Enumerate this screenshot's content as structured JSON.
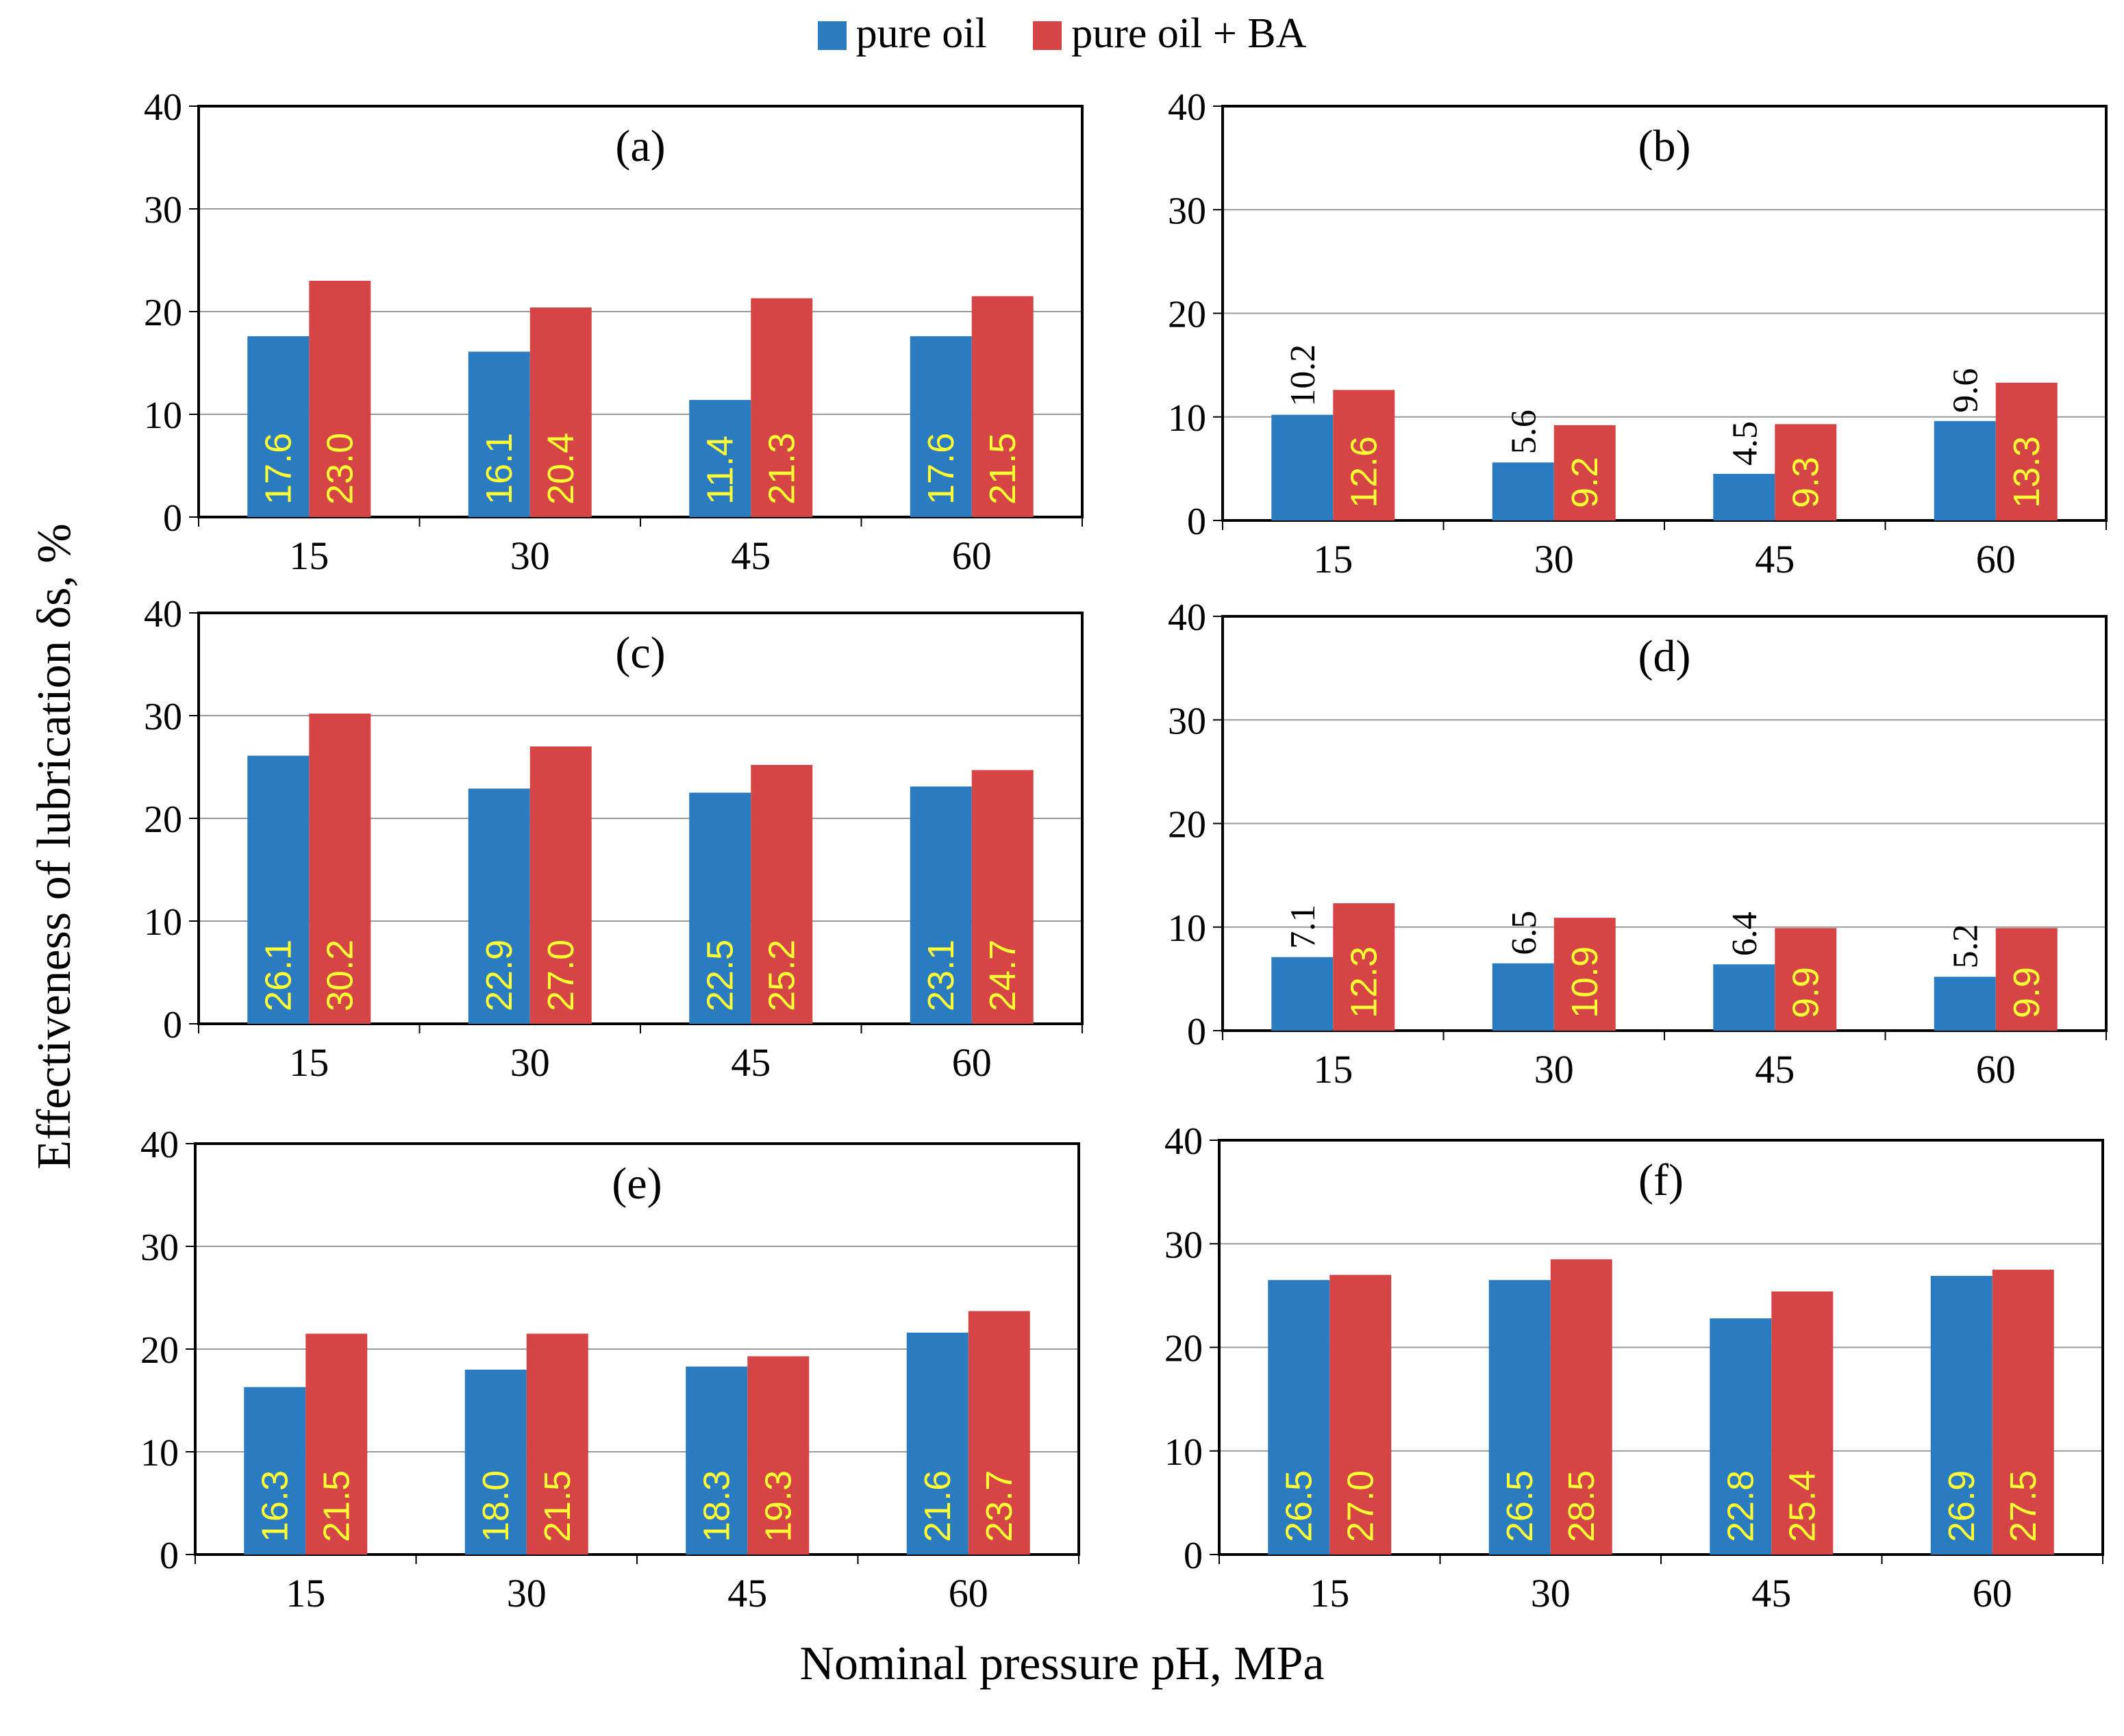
{
  "legend": {
    "series_1": "pure oil",
    "series_2": "pure oil + BA"
  },
  "y_axis_label": "Effectiveness of lubrication δs, %",
  "x_axis_label": "Nominal pressure pH, MPa",
  "colors": {
    "pure_oil": "#2a7bc0",
    "pure_oil_ba": "#d64545",
    "label_on_bar": "#ffff33",
    "label_outside": "#000000"
  },
  "chart_data": [
    {
      "type": "bar",
      "title": "(a)",
      "categories": [
        "15",
        "30",
        "45",
        "60"
      ],
      "series": [
        {
          "name": "pure oil",
          "values": [
            17.6,
            16.1,
            11.4,
            17.6
          ]
        },
        {
          "name": "pure oil + BA",
          "values": [
            23.0,
            20.4,
            21.3,
            21.5
          ]
        }
      ],
      "ylim": [
        0,
        40
      ],
      "yticks": [
        "0",
        "10",
        "20",
        "30",
        "40"
      ],
      "value_labels": [
        [
          "17.6",
          "16.1",
          "11.4",
          "17.6"
        ],
        [
          "23.0",
          "20.4",
          "21.3",
          "21.5"
        ]
      ],
      "blue_labels_above": false
    },
    {
      "type": "bar",
      "title": "(b)",
      "categories": [
        "15",
        "30",
        "45",
        "60"
      ],
      "series": [
        {
          "name": "pure oil",
          "values": [
            10.2,
            5.6,
            4.5,
            9.6
          ]
        },
        {
          "name": "pure oil + BA",
          "values": [
            12.6,
            9.2,
            9.3,
            13.3
          ]
        }
      ],
      "ylim": [
        0,
        40
      ],
      "yticks": [
        "0",
        "10",
        "20",
        "30",
        "40"
      ],
      "value_labels": [
        [
          "10.2",
          "5.6",
          "4.5",
          "9.6"
        ],
        [
          "12.6",
          "9.2",
          "9.3",
          "13.3"
        ]
      ],
      "blue_labels_above": true
    },
    {
      "type": "bar",
      "title": "(c)",
      "categories": [
        "15",
        "30",
        "45",
        "60"
      ],
      "series": [
        {
          "name": "pure oil",
          "values": [
            26.1,
            22.9,
            22.5,
            23.1
          ]
        },
        {
          "name": "pure oil + BA",
          "values": [
            30.2,
            27.0,
            25.2,
            24.7
          ]
        }
      ],
      "ylim": [
        0,
        40
      ],
      "yticks": [
        "0",
        "10",
        "20",
        "30",
        "40"
      ],
      "value_labels": [
        [
          "26.1",
          "22.9",
          "22.5",
          "23.1"
        ],
        [
          "30.2",
          "27.0",
          "25.2",
          "24.7"
        ]
      ],
      "blue_labels_above": false
    },
    {
      "type": "bar",
      "title": "(d)",
      "categories": [
        "15",
        "30",
        "45",
        "60"
      ],
      "series": [
        {
          "name": "pure oil",
          "values": [
            7.1,
            6.5,
            6.4,
            5.2
          ]
        },
        {
          "name": "pure oil + BA",
          "values": [
            12.3,
            10.9,
            9.9,
            9.9
          ]
        }
      ],
      "ylim": [
        0,
        40
      ],
      "yticks": [
        "0",
        "10",
        "20",
        "30",
        "40"
      ],
      "value_labels": [
        [
          "7.1",
          "6.5",
          "6.4",
          "5.2"
        ],
        [
          "12.3",
          "10.9",
          "9.9",
          "9.9"
        ]
      ],
      "blue_labels_above": true
    },
    {
      "type": "bar",
      "title": "(e)",
      "categories": [
        "15",
        "30",
        "45",
        "60"
      ],
      "series": [
        {
          "name": "pure oil",
          "values": [
            16.3,
            18.0,
            18.3,
            21.6
          ]
        },
        {
          "name": "pure oil + BA",
          "values": [
            21.5,
            21.5,
            19.3,
            23.7
          ]
        }
      ],
      "ylim": [
        0,
        40
      ],
      "yticks": [
        "0",
        "10",
        "20",
        "30",
        "40"
      ],
      "value_labels": [
        [
          "16.3",
          "18.0",
          "18.3",
          "21.6"
        ],
        [
          "21.5",
          "21.5",
          "19.3",
          "23.7"
        ]
      ],
      "blue_labels_above": false
    },
    {
      "type": "bar",
      "title": "(f)",
      "categories": [
        "15",
        "30",
        "45",
        "60"
      ],
      "series": [
        {
          "name": "pure oil",
          "values": [
            26.5,
            26.5,
            22.8,
            26.9
          ]
        },
        {
          "name": "pure oil + BA",
          "values": [
            27.0,
            28.5,
            25.4,
            27.5
          ]
        }
      ],
      "ylim": [
        0,
        40
      ],
      "yticks": [
        "0",
        "10",
        "20",
        "30",
        "40"
      ],
      "value_labels": [
        [
          "26.5",
          "26.5",
          "22.8",
          "26.9"
        ],
        [
          "27.0",
          "28.5",
          "25.4",
          "27.5"
        ]
      ],
      "blue_labels_above": false
    }
  ]
}
